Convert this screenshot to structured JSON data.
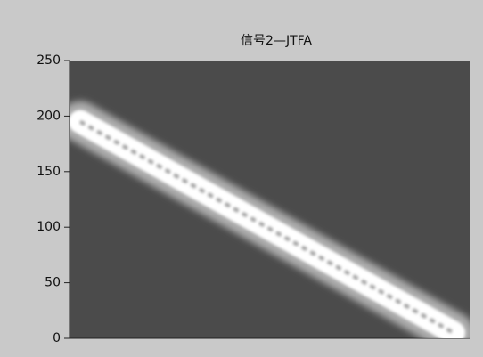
{
  "chart_data": {
    "type": "heatmap",
    "title": "信号2—JTFA",
    "categories": [
      null,
      null,
      null,
      null,
      null,
      null,
      null,
      null,
      null,
      null,
      null
    ],
    "values": [
      195,
      176,
      157,
      138,
      119,
      100,
      81,
      62,
      43,
      24,
      5
    ],
    "color": "#ffffff",
    "background": "#4b4b4b",
    "ylim": [
      0,
      250
    ],
    "yticks": [
      0,
      50,
      100,
      150,
      200,
      250
    ]
  }
}
